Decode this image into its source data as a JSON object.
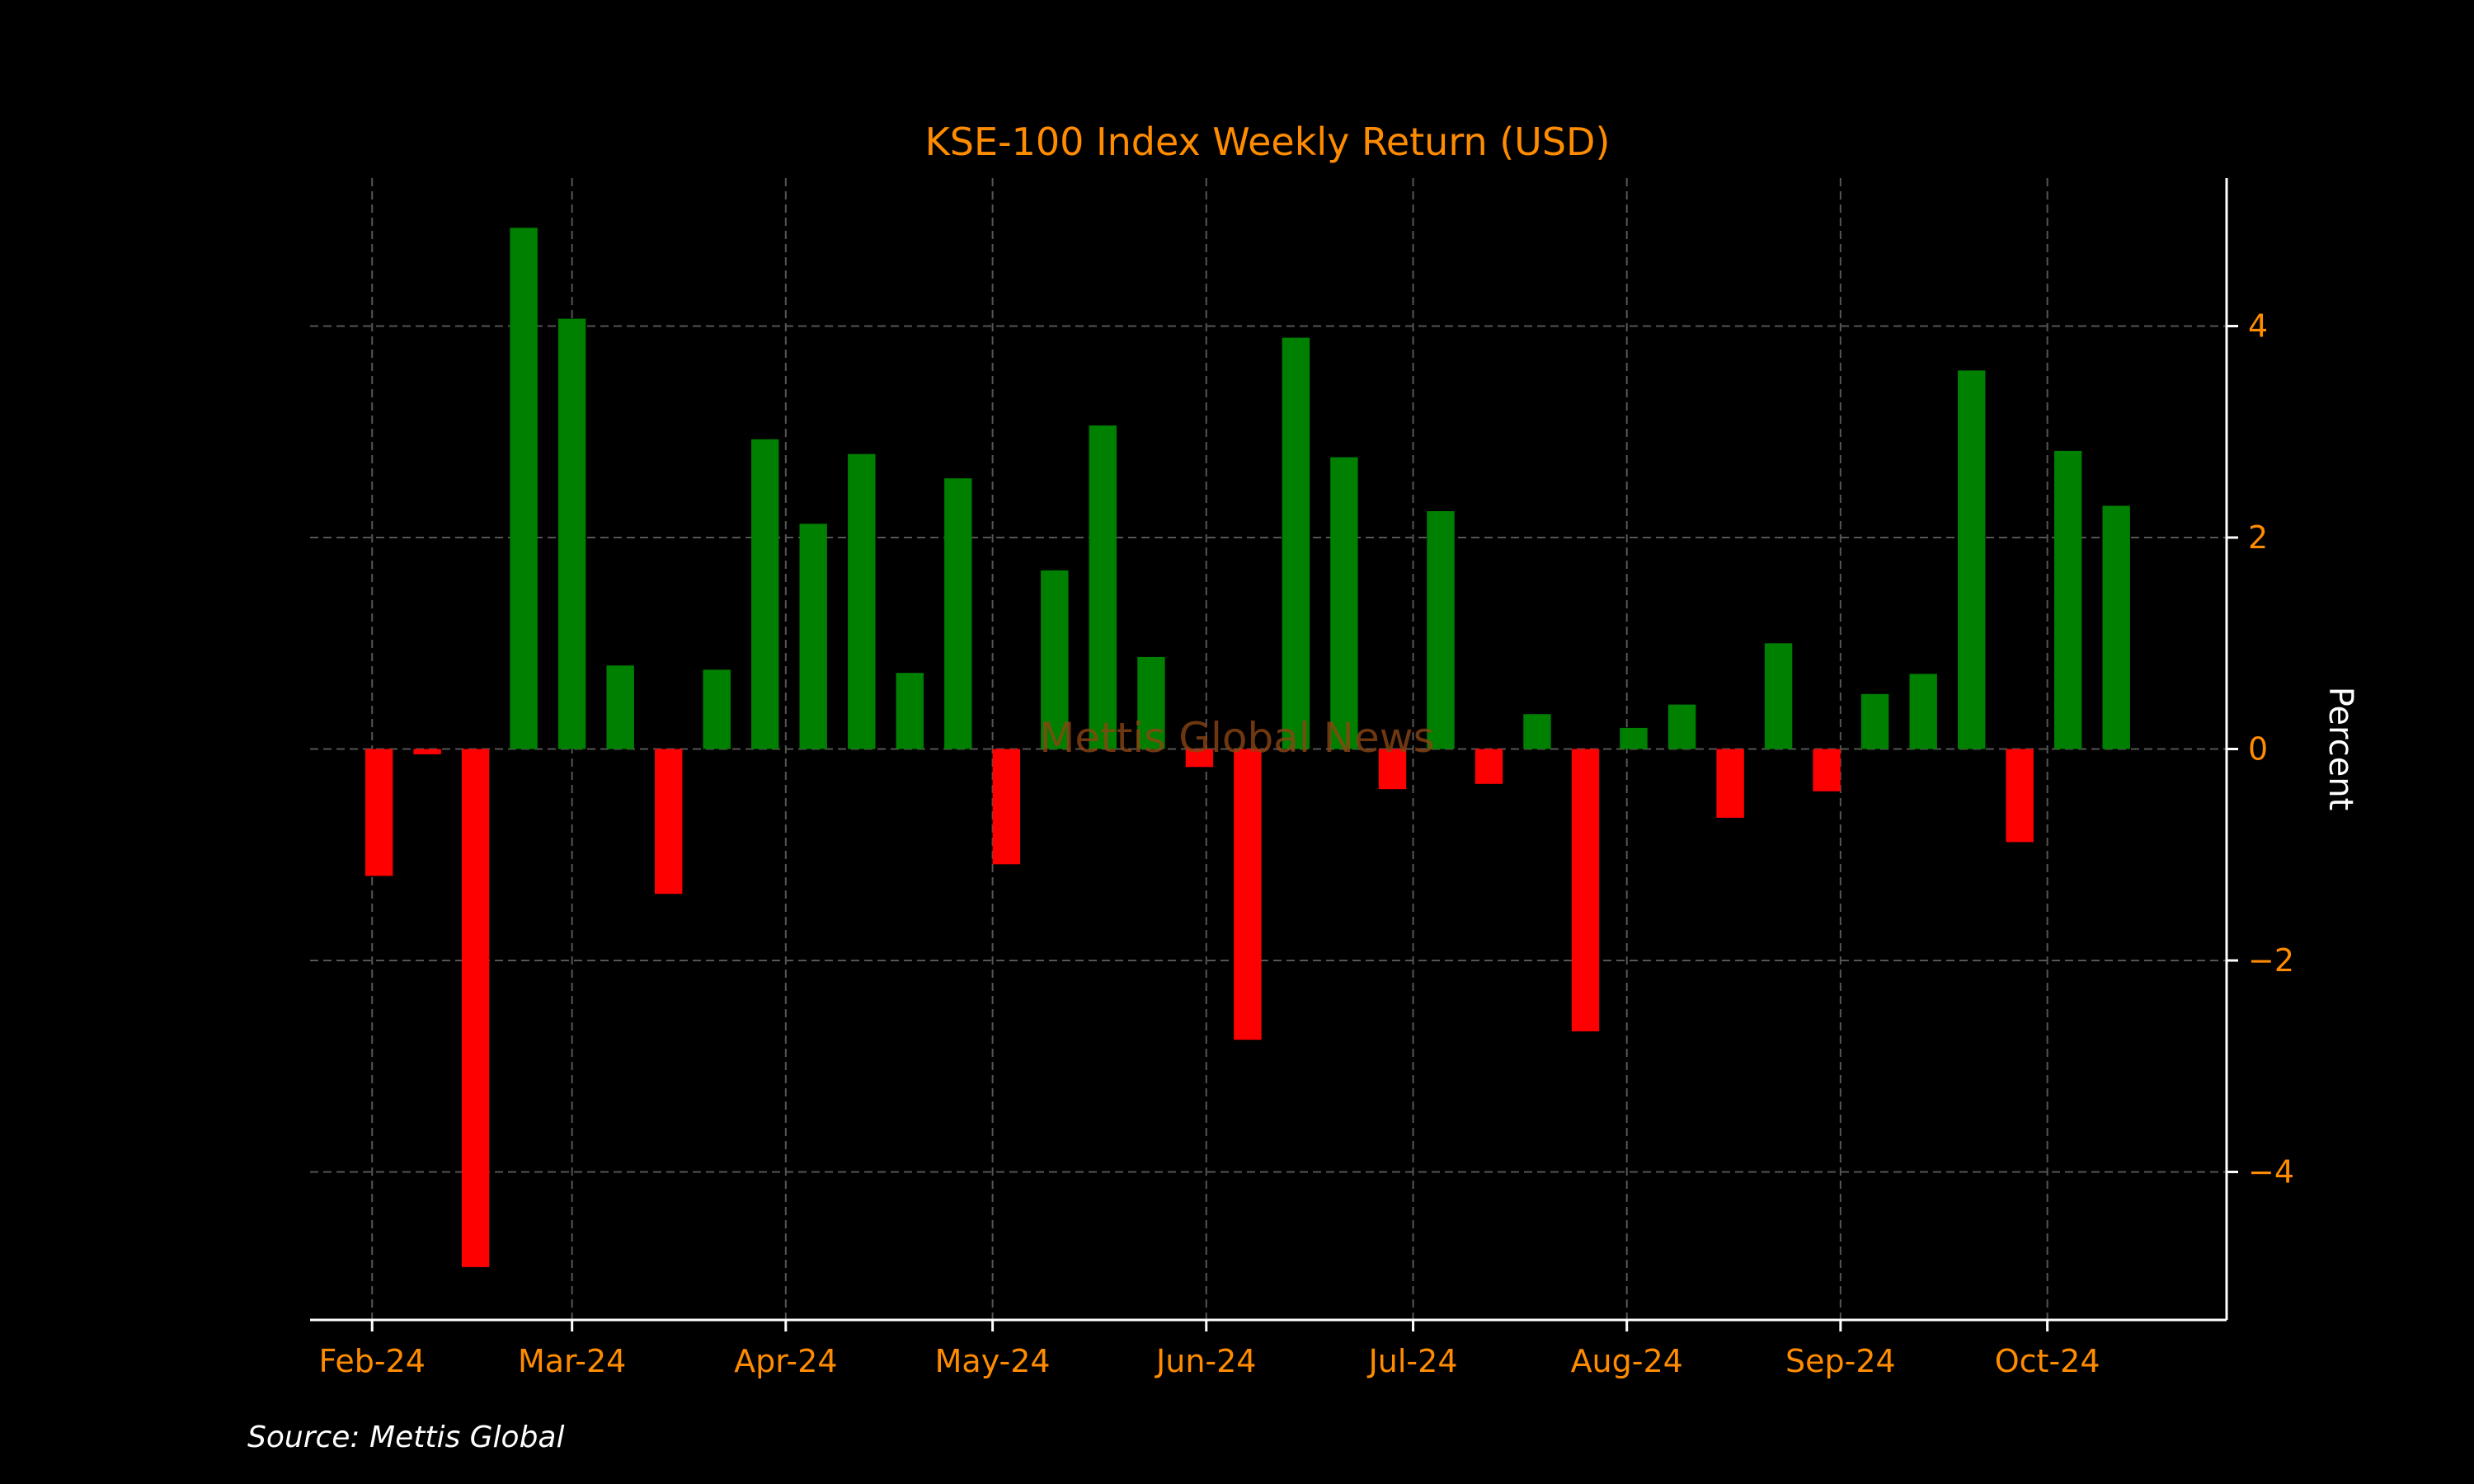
{
  "chart_data": {
    "type": "bar",
    "title": "KSE-100 Index Weekly Return (USD)",
    "ylabel": "Percent",
    "xlabel": "",
    "source": "Source: Mettis Global",
    "watermark": "Mettis Global News",
    "ylim": [
      -5.4,
      5.4
    ],
    "yticks": [
      -4,
      -2,
      0,
      2,
      4
    ],
    "ytick_labels": [
      "−4",
      "−2",
      "0",
      "2",
      "4"
    ],
    "x_start": "2024-01-23",
    "x_end": "2024-10-27",
    "month_ticks": [
      {
        "date": "2024-02-01",
        "label": "Feb-24"
      },
      {
        "date": "2024-03-01",
        "label": "Mar-24"
      },
      {
        "date": "2024-04-01",
        "label": "Apr-24"
      },
      {
        "date": "2024-05-01",
        "label": "May-24"
      },
      {
        "date": "2024-06-01",
        "label": "Jun-24"
      },
      {
        "date": "2024-07-01",
        "label": "Jul-24"
      },
      {
        "date": "2024-08-01",
        "label": "Aug-24"
      },
      {
        "date": "2024-09-01",
        "label": "Sep-24"
      },
      {
        "date": "2024-10-01",
        "label": "Oct-24"
      }
    ],
    "bar_width_days": 4,
    "dates": [
      "2024-02-02",
      "2024-02-09",
      "2024-02-16",
      "2024-02-23",
      "2024-03-01",
      "2024-03-08",
      "2024-03-15",
      "2024-03-22",
      "2024-03-29",
      "2024-04-05",
      "2024-04-12",
      "2024-04-19",
      "2024-04-26",
      "2024-05-03",
      "2024-05-10",
      "2024-05-17",
      "2024-05-24",
      "2024-05-31",
      "2024-06-07",
      "2024-06-14",
      "2024-06-21",
      "2024-06-28",
      "2024-07-05",
      "2024-07-12",
      "2024-07-19",
      "2024-07-26",
      "2024-08-02",
      "2024-08-09",
      "2024-08-16",
      "2024-08-23",
      "2024-08-30",
      "2024-09-06",
      "2024-09-13",
      "2024-09-20",
      "2024-09-27",
      "2024-10-04",
      "2024-10-11"
    ],
    "values": [
      -1.2,
      -0.05,
      -4.9,
      4.93,
      4.07,
      0.79,
      -1.37,
      0.75,
      2.93,
      2.13,
      2.79,
      0.72,
      2.56,
      -1.09,
      1.69,
      3.06,
      0.87,
      -0.17,
      -2.75,
      3.89,
      2.76,
      -0.38,
      2.25,
      -0.33,
      0.33,
      -2.67,
      0.2,
      0.42,
      -0.65,
      1.0,
      -0.4,
      0.52,
      0.71,
      3.58,
      -0.88,
      2.82,
      2.3
    ],
    "positive_color": "#008000",
    "negative_color": "#ff0000",
    "text_color": "#ff8c00",
    "axis_color": "#ffffff",
    "grid": true,
    "grid_color": "#555555",
    "watermark_color": "#8b4513",
    "background": "#000000"
  }
}
